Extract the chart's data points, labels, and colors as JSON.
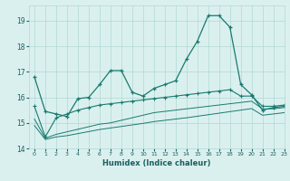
{
  "xlabel": "Humidex (Indice chaleur)",
  "xlim": [
    -0.5,
    23
  ],
  "ylim": [
    14,
    19.6
  ],
  "yticks": [
    14,
    15,
    16,
    17,
    18,
    19
  ],
  "xticks": [
    0,
    1,
    2,
    3,
    4,
    5,
    6,
    7,
    8,
    9,
    10,
    11,
    12,
    13,
    14,
    15,
    16,
    17,
    18,
    19,
    20,
    21,
    22,
    23
  ],
  "bg_color": "#daf0ef",
  "grid_color": "#b0d8d5",
  "line_color": "#1a7a6e",
  "line1_x": [
    0,
    1,
    2,
    3,
    4,
    5,
    6,
    7,
    8,
    9,
    10,
    11,
    12,
    13,
    14,
    15,
    16,
    17,
    18,
    19,
    20,
    21,
    22,
    23
  ],
  "line1_y": [
    16.8,
    15.45,
    15.35,
    15.25,
    15.95,
    16.0,
    16.5,
    17.05,
    17.05,
    16.2,
    16.05,
    16.35,
    16.5,
    16.65,
    17.5,
    18.2,
    19.2,
    19.2,
    18.75,
    16.5,
    16.1,
    15.5,
    15.6,
    15.65
  ],
  "line2_x": [
    0,
    1,
    2,
    3,
    4,
    5,
    6,
    7,
    8,
    9,
    10,
    11,
    12,
    13,
    14,
    15,
    16,
    17,
    18,
    19,
    20,
    21,
    22,
    23
  ],
  "line2_y": [
    15.65,
    14.45,
    15.2,
    15.35,
    15.5,
    15.6,
    15.7,
    15.75,
    15.8,
    15.85,
    15.9,
    15.95,
    16.0,
    16.05,
    16.1,
    16.15,
    16.2,
    16.25,
    16.3,
    16.05,
    16.05,
    15.65,
    15.65,
    15.7
  ],
  "line3_x": [
    0,
    1,
    2,
    3,
    4,
    5,
    6,
    7,
    8,
    9,
    10,
    11,
    12,
    13,
    14,
    15,
    16,
    17,
    18,
    19,
    20,
    21,
    22,
    23
  ],
  "line3_y": [
    15.15,
    14.4,
    14.55,
    14.65,
    14.75,
    14.85,
    14.95,
    15.0,
    15.1,
    15.2,
    15.3,
    15.4,
    15.45,
    15.5,
    15.55,
    15.6,
    15.65,
    15.7,
    15.75,
    15.8,
    15.85,
    15.55,
    15.55,
    15.6
  ],
  "line4_x": [
    0,
    1,
    2,
    3,
    4,
    5,
    6,
    7,
    8,
    9,
    10,
    11,
    12,
    13,
    14,
    15,
    16,
    17,
    18,
    19,
    20,
    21,
    22,
    23
  ],
  "line4_y": [
    14.9,
    14.35,
    14.45,
    14.5,
    14.58,
    14.66,
    14.74,
    14.8,
    14.86,
    14.92,
    14.98,
    15.05,
    15.1,
    15.15,
    15.2,
    15.26,
    15.32,
    15.38,
    15.44,
    15.5,
    15.56,
    15.3,
    15.35,
    15.4
  ]
}
